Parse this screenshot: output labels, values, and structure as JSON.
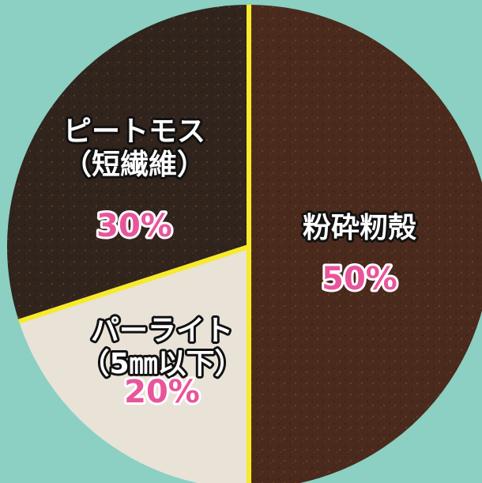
{
  "chart_data": {
    "type": "pie",
    "categories": [
      "粉砕籾殻",
      "パーライト（5㎜以下）",
      "ピートモス（短繊維）"
    ],
    "values": [
      50,
      20,
      30
    ],
    "value_labels": [
      "50%",
      "20%",
      "30%"
    ],
    "colors": [
      "#4a2a1c",
      "#e9e2d7",
      "#30241d"
    ],
    "separator_color": "#f7ea2a"
  }
}
